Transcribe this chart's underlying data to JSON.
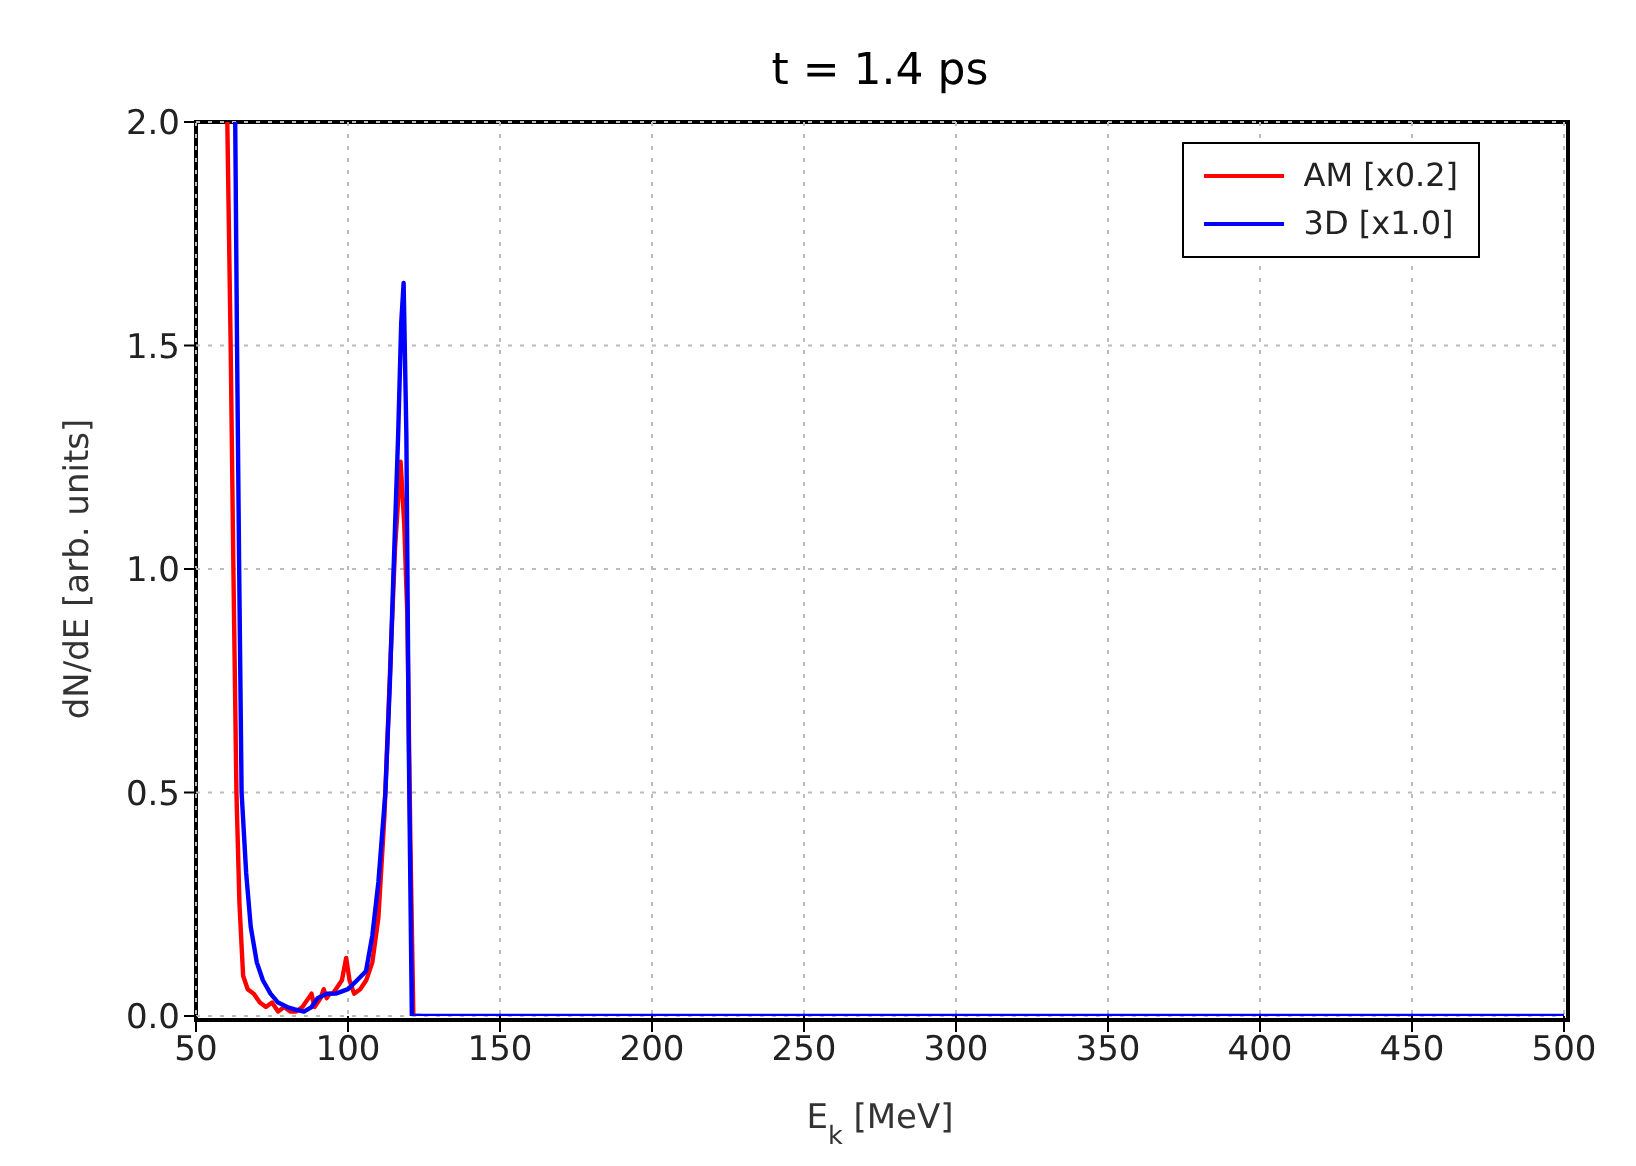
{
  "chart_data": {
    "type": "line",
    "title": "t = 1.4 ps",
    "xlabel": "E$_{k}$ [MeV]",
    "ylabel": "dN/dE [arb. units]",
    "xlim": [
      50,
      500
    ],
    "xticks": [
      50,
      100,
      150,
      200,
      250,
      300,
      350,
      400,
      450,
      500
    ],
    "ylim": [
      0,
      2
    ],
    "yticks": [
      {
        "value": 0,
        "label": "0.0"
      },
      {
        "value": 0.5,
        "label": "0.5"
      },
      {
        "value": 1,
        "label": "1.0"
      },
      {
        "value": 1.5,
        "label": "1.5"
      },
      {
        "value": 2,
        "label": "2.0"
      }
    ],
    "grid": true,
    "legend": "top right",
    "marker": "none",
    "line_style": "solid",
    "series": [
      {
        "name": "AM [x0.2]",
        "color": "#ff0000",
        "x": [
          60.3,
          61.4,
          62.3,
          63.3,
          64.3,
          65.5,
          67,
          69,
          71,
          73,
          75,
          77,
          79,
          81,
          83,
          85,
          87,
          88,
          89,
          90,
          91,
          92,
          93,
          94,
          95,
          96,
          97,
          98,
          99.4,
          100.5,
          102,
          104,
          106,
          108,
          110,
          112,
          114,
          115.5,
          117.3,
          118.5,
          119.5,
          120.5,
          121.5,
          124
        ],
        "values": [
          2.0,
          1.5,
          1.0,
          0.5,
          0.25,
          0.09,
          0.06,
          0.05,
          0.03,
          0.02,
          0.03,
          0.01,
          0.02,
          0.01,
          0.01,
          0.02,
          0.04,
          0.05,
          0.02,
          0.03,
          0.04,
          0.06,
          0.04,
          0.05,
          0.05,
          0.06,
          0.07,
          0.08,
          0.13,
          0.08,
          0.05,
          0.06,
          0.08,
          0.12,
          0.22,
          0.45,
          0.8,
          1.05,
          1.24,
          1.1,
          0.9,
          0.4,
          0.0,
          0.0
        ]
      },
      {
        "name": "3D [x1.0]",
        "color": "#0000ff",
        "x": [
          62.9,
          63.5,
          64.2,
          65,
          66.5,
          68,
          70,
          72,
          74.5,
          77,
          80,
          82.5,
          85.5,
          88,
          90,
          93,
          96,
          100,
          103,
          105.9,
          108,
          110,
          112.3,
          113.8,
          115,
          116.5,
          117.5,
          118.3,
          119.2,
          120,
          121,
          124,
          150,
          200,
          300,
          400,
          500
        ],
        "values": [
          2.0,
          1.5,
          1.0,
          0.5,
          0.32,
          0.2,
          0.12,
          0.08,
          0.05,
          0.03,
          0.02,
          0.015,
          0.01,
          0.02,
          0.04,
          0.05,
          0.05,
          0.06,
          0.08,
          0.1,
          0.18,
          0.3,
          0.5,
          0.75,
          1.0,
          1.3,
          1.55,
          1.64,
          1.3,
          0.6,
          0.0,
          0.0,
          0.0,
          0.0,
          0.0,
          0.0,
          0.0
        ]
      }
    ]
  }
}
